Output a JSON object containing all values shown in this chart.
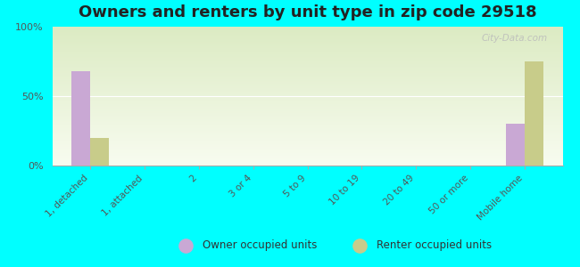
{
  "title": "Owners and renters by unit type in zip code 29518",
  "categories": [
    "1, detached",
    "1, attached",
    "2",
    "3 or 4",
    "5 to 9",
    "10 to 19",
    "20 to 49",
    "50 or more",
    "Mobile home"
  ],
  "owner_values": [
    68,
    0,
    0,
    0,
    0,
    0,
    0,
    0,
    30
  ],
  "renter_values": [
    20,
    0,
    0,
    0,
    0,
    0,
    0,
    0,
    75
  ],
  "owner_color": "#c9a8d4",
  "renter_color": "#c8cc8a",
  "ylim": [
    0,
    100
  ],
  "yticks": [
    0,
    50,
    100
  ],
  "ytick_labels": [
    "0%",
    "50%",
    "100%"
  ],
  "background_color": "#00ffff",
  "bar_width": 0.35,
  "legend_labels": [
    "Owner occupied units",
    "Renter occupied units"
  ],
  "title_fontsize": 13,
  "watermark": "City-Data.com"
}
